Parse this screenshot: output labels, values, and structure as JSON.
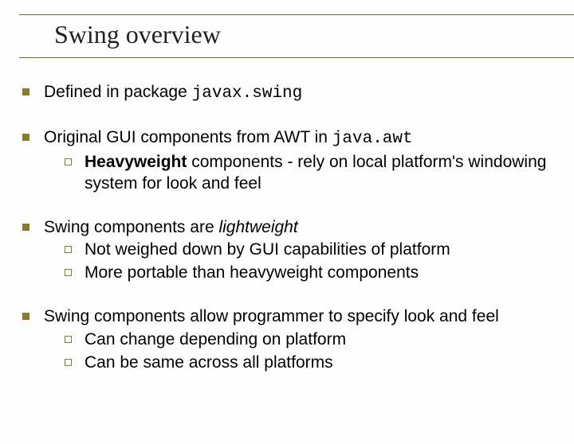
{
  "title": "Swing overview",
  "colors": {
    "bullet": "#8a7a2a",
    "rule": "#7a6a2a",
    "background": "#fefefe",
    "text": "#000000"
  },
  "typography": {
    "title_font": "Times New Roman",
    "title_size_pt": 24,
    "body_font": "Arial",
    "body_size_pt": 16,
    "mono_font": "Courier New"
  },
  "items": [
    {
      "segments": [
        {
          "text": "Defined in package "
        },
        {
          "text": "javax.swing",
          "mono": true
        }
      ],
      "sub": []
    },
    {
      "segments": [
        {
          "text": "Original GUI components from AWT in "
        },
        {
          "text": "java.awt",
          "mono": true
        }
      ],
      "sub": [
        {
          "segments": [
            {
              "text": "Heavyweight",
              "bold": true
            },
            {
              "text": " components - rely on local platform's windowing system for look and feel"
            }
          ]
        }
      ]
    },
    {
      "segments": [
        {
          "text": "Swing components are "
        },
        {
          "text": "lightweight",
          "ital": true
        }
      ],
      "sub": [
        {
          "segments": [
            {
              "text": "Not weighed down by GUI capabilities of platform"
            }
          ]
        },
        {
          "segments": [
            {
              "text": "More portable than heavyweight components"
            }
          ]
        }
      ]
    },
    {
      "segments": [
        {
          "text": "Swing components allow programmer to specify look and feel"
        }
      ],
      "sub": [
        {
          "segments": [
            {
              "text": "Can change depending on platform"
            }
          ]
        },
        {
          "segments": [
            {
              "text": "Can be same across all platforms"
            }
          ]
        }
      ]
    }
  ]
}
